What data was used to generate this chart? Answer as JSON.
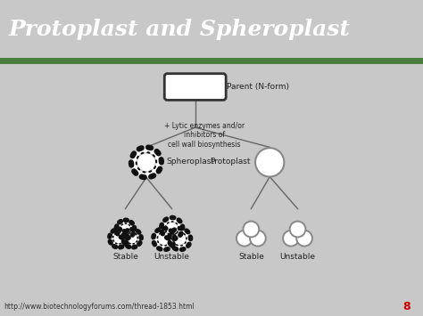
{
  "title": "Protoplast and Spheroplast",
  "title_color": "#FFFFFF",
  "title_bg": "#5C3317",
  "bg_color": "#C8C8C8",
  "footer_text": "http://www.biotechnologyforums.com/thread-1853.html",
  "footer_bg": "#D4A0A0",
  "parent_label": "Parent (N-form)",
  "enzyme_text": "+ Lytic enzymes and/or\ninhibitors of\ncell wall biosynthesis",
  "spheroplast_label": "Spheroplast",
  "protoplast_label": "Protoplast",
  "stable_label": "Stable",
  "unstable_label": "Unstable",
  "page_num": "8",
  "line_color": "#666666",
  "box_color": "#FFFFFF",
  "box_edge": "#333333",
  "proto_edge": "#888888",
  "dark_edge": "#111111",
  "green_stripe": "#4a7c3f"
}
